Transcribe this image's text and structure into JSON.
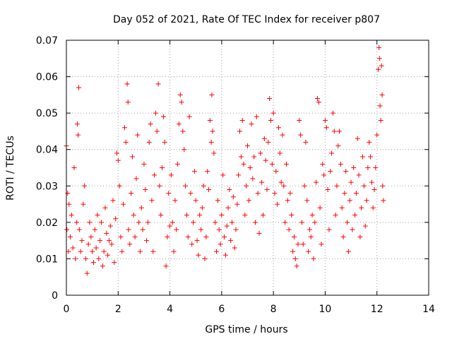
{
  "chart_data": {
    "type": "scatter",
    "title": "Day 052 of 2021, Rate Of TEC Index for receiver p807",
    "xlabel": "GPS time / hours",
    "ylabel": "ROTI / TECUs",
    "xlim": [
      0,
      14
    ],
    "ylim": [
      0,
      0.07
    ],
    "xticks": [
      0,
      2,
      4,
      6,
      8,
      10,
      12,
      14
    ],
    "xtick_labels": [
      "0",
      "2",
      "4",
      "6",
      "8",
      "10",
      "12",
      "14"
    ],
    "yticks": [
      0,
      0.01,
      0.02,
      0.03,
      0.04,
      0.05,
      0.06,
      0.07
    ],
    "ytick_labels": [
      "0",
      "0.01",
      "0.02",
      "0.03",
      "0.04",
      "0.05",
      "0.06",
      "0.07"
    ],
    "grid": true,
    "marker": "+",
    "color": "#ff0000",
    "series": [
      {
        "name": "ROTI",
        "points": [
          [
            0.0,
            0.041
          ],
          [
            0.02,
            0.018
          ],
          [
            0.05,
            0.028
          ],
          [
            0.08,
            0.012
          ],
          [
            0.1,
            0.025
          ],
          [
            0.15,
            0.016
          ],
          [
            0.2,
            0.022
          ],
          [
            0.25,
            0.013
          ],
          [
            0.3,
            0.035
          ],
          [
            0.35,
            0.01
          ],
          [
            0.4,
            0.02
          ],
          [
            0.42,
            0.047
          ],
          [
            0.45,
            0.044
          ],
          [
            0.48,
            0.057
          ],
          [
            0.5,
            0.018
          ],
          [
            0.55,
            0.012
          ],
          [
            0.6,
            0.015
          ],
          [
            0.65,
            0.025
          ],
          [
            0.7,
            0.03
          ],
          [
            0.75,
            0.01
          ],
          [
            0.8,
            0.006
          ],
          [
            0.85,
            0.014
          ],
          [
            0.9,
            0.02
          ],
          [
            0.95,
            0.016
          ],
          [
            1.0,
            0.012
          ],
          [
            1.05,
            0.009
          ],
          [
            1.1,
            0.018
          ],
          [
            1.15,
            0.013
          ],
          [
            1.2,
            0.022
          ],
          [
            1.25,
            0.01
          ],
          [
            1.3,
            0.015
          ],
          [
            1.35,
            0.02
          ],
          [
            1.4,
            0.008
          ],
          [
            1.45,
            0.012
          ],
          [
            1.5,
            0.024
          ],
          [
            1.55,
            0.017
          ],
          [
            1.6,
            0.011
          ],
          [
            1.65,
            0.015
          ],
          [
            1.7,
            0.019
          ],
          [
            1.75,
            0.014
          ],
          [
            1.8,
            0.026
          ],
          [
            1.85,
            0.009
          ],
          [
            1.9,
            0.021
          ],
          [
            1.95,
            0.039
          ],
          [
            2.0,
            0.037
          ],
          [
            2.05,
            0.03
          ],
          [
            2.1,
            0.016
          ],
          [
            2.15,
            0.012
          ],
          [
            2.2,
            0.025
          ],
          [
            2.25,
            0.046
          ],
          [
            2.3,
            0.042
          ],
          [
            2.35,
            0.058
          ],
          [
            2.38,
            0.053
          ],
          [
            2.4,
            0.018
          ],
          [
            2.45,
            0.014
          ],
          [
            2.5,
            0.028
          ],
          [
            2.55,
            0.038
          ],
          [
            2.6,
            0.022
          ],
          [
            2.65,
            0.016
          ],
          [
            2.7,
            0.032
          ],
          [
            2.75,
            0.044
          ],
          [
            2.8,
            0.02
          ],
          [
            2.85,
            0.012
          ],
          [
            2.9,
            0.024
          ],
          [
            2.95,
            0.018
          ],
          [
            3.0,
            0.036
          ],
          [
            3.05,
            0.029
          ],
          [
            3.1,
            0.015
          ],
          [
            3.15,
            0.02
          ],
          [
            3.2,
            0.042
          ],
          [
            3.25,
            0.047
          ],
          [
            3.3,
            0.026
          ],
          [
            3.35,
            0.012
          ],
          [
            3.4,
            0.033
          ],
          [
            3.45,
            0.05
          ],
          [
            3.5,
            0.045
          ],
          [
            3.55,
            0.058
          ],
          [
            3.6,
            0.03
          ],
          [
            3.65,
            0.022
          ],
          [
            3.7,
            0.035
          ],
          [
            3.75,
            0.049
          ],
          [
            3.8,
            0.042
          ],
          [
            3.85,
            0.008
          ],
          [
            3.9,
            0.016
          ],
          [
            3.95,
            0.028
          ],
          [
            4.0,
            0.019
          ],
          [
            4.05,
            0.033
          ],
          [
            4.1,
            0.02
          ],
          [
            4.15,
            0.012
          ],
          [
            4.2,
            0.026
          ],
          [
            4.25,
            0.018
          ],
          [
            4.3,
            0.036
          ],
          [
            4.35,
            0.047
          ],
          [
            4.4,
            0.055
          ],
          [
            4.45,
            0.053
          ],
          [
            4.5,
            0.045
          ],
          [
            4.55,
            0.04
          ],
          [
            4.6,
            0.03
          ],
          [
            4.65,
            0.022
          ],
          [
            4.7,
            0.016
          ],
          [
            4.75,
            0.049
          ],
          [
            4.8,
            0.028
          ],
          [
            4.85,
            0.014
          ],
          [
            4.9,
            0.02
          ],
          [
            4.95,
            0.034
          ],
          [
            5.0,
            0.026
          ],
          [
            5.05,
            0.015
          ],
          [
            5.1,
            0.011
          ],
          [
            5.15,
            0.022
          ],
          [
            5.2,
            0.018
          ],
          [
            5.25,
            0.024
          ],
          [
            5.3,
            0.03
          ],
          [
            5.35,
            0.01
          ],
          [
            5.4,
            0.016
          ],
          [
            5.45,
            0.034
          ],
          [
            5.5,
            0.029
          ],
          [
            5.55,
            0.048
          ],
          [
            5.6,
            0.042
          ],
          [
            5.62,
            0.055
          ],
          [
            5.65,
            0.045
          ],
          [
            5.7,
            0.039
          ],
          [
            5.75,
            0.02
          ],
          [
            5.8,
            0.012
          ],
          [
            5.85,
            0.026
          ],
          [
            5.9,
            0.018
          ],
          [
            5.95,
            0.014
          ],
          [
            6.0,
            0.022
          ],
          [
            6.05,
            0.033
          ],
          [
            6.1,
            0.016
          ],
          [
            6.15,
            0.011
          ],
          [
            6.2,
            0.019
          ],
          [
            6.25,
            0.024
          ],
          [
            6.3,
            0.029
          ],
          [
            6.35,
            0.015
          ],
          [
            6.4,
            0.02
          ],
          [
            6.45,
            0.027
          ],
          [
            6.5,
            0.013
          ],
          [
            6.55,
            0.018
          ],
          [
            6.6,
            0.025
          ],
          [
            6.65,
            0.033
          ],
          [
            6.7,
            0.045
          ],
          [
            6.75,
            0.038
          ],
          [
            6.8,
            0.048
          ],
          [
            6.85,
            0.036
          ],
          [
            6.9,
            0.022
          ],
          [
            6.95,
            0.03
          ],
          [
            7.0,
            0.041
          ],
          [
            7.05,
            0.026
          ],
          [
            7.1,
            0.035
          ],
          [
            7.15,
            0.047
          ],
          [
            7.2,
            0.032
          ],
          [
            7.25,
            0.038
          ],
          [
            7.3,
            0.02
          ],
          [
            7.35,
            0.049
          ],
          [
            7.4,
            0.028
          ],
          [
            7.45,
            0.017
          ],
          [
            7.5,
            0.039
          ],
          [
            7.55,
            0.031
          ],
          [
            7.6,
            0.022
          ],
          [
            7.65,
            0.043
          ],
          [
            7.7,
            0.037
          ],
          [
            7.75,
            0.029
          ],
          [
            7.8,
            0.042
          ],
          [
            7.85,
            0.054
          ],
          [
            7.9,
            0.048
          ],
          [
            7.95,
            0.036
          ],
          [
            8.0,
            0.05
          ],
          [
            8.05,
            0.028
          ],
          [
            8.1,
            0.034
          ],
          [
            8.15,
            0.025
          ],
          [
            8.2,
            0.046
          ],
          [
            8.25,
            0.039
          ],
          [
            8.3,
            0.031
          ],
          [
            8.35,
            0.044
          ],
          [
            8.4,
            0.03
          ],
          [
            8.45,
            0.02
          ],
          [
            8.5,
            0.036
          ],
          [
            8.55,
            0.026
          ],
          [
            8.6,
            0.018
          ],
          [
            8.65,
            0.028
          ],
          [
            8.7,
            0.022
          ],
          [
            8.75,
            0.012
          ],
          [
            8.8,
            0.016
          ],
          [
            8.85,
            0.01
          ],
          [
            8.9,
            0.008
          ],
          [
            8.95,
            0.014
          ],
          [
            9.0,
            0.048
          ],
          [
            9.05,
            0.044
          ],
          [
            9.1,
            0.02
          ],
          [
            9.15,
            0.014
          ],
          [
            9.2,
            0.03
          ],
          [
            9.25,
            0.042
          ],
          [
            9.3,
            0.026
          ],
          [
            9.35,
            0.012
          ],
          [
            9.4,
            0.018
          ],
          [
            9.45,
            0.016
          ],
          [
            9.5,
            0.022
          ],
          [
            9.55,
            0.01
          ],
          [
            9.6,
            0.02
          ],
          [
            9.65,
            0.031
          ],
          [
            9.7,
            0.054
          ],
          [
            9.75,
            0.053
          ],
          [
            9.8,
            0.024
          ],
          [
            9.85,
            0.014
          ],
          [
            9.9,
            0.036
          ],
          [
            9.95,
            0.033
          ],
          [
            10.0,
            0.048
          ],
          [
            10.05,
            0.046
          ],
          [
            10.1,
            0.029
          ],
          [
            10.15,
            0.018
          ],
          [
            10.2,
            0.034
          ],
          [
            10.25,
            0.039
          ],
          [
            10.3,
            0.05
          ],
          [
            10.35,
            0.045
          ],
          [
            10.4,
            0.022
          ],
          [
            10.45,
            0.03
          ],
          [
            10.5,
            0.041
          ],
          [
            10.55,
            0.045
          ],
          [
            10.6,
            0.036
          ],
          [
            10.65,
            0.024
          ],
          [
            10.7,
            0.016
          ],
          [
            10.75,
            0.028
          ],
          [
            10.8,
            0.034
          ],
          [
            10.85,
            0.02
          ],
          [
            10.9,
            0.012
          ],
          [
            10.95,
            0.026
          ],
          [
            11.0,
            0.031
          ],
          [
            11.05,
            0.018
          ],
          [
            11.1,
            0.035
          ],
          [
            11.15,
            0.022
          ],
          [
            11.2,
            0.028
          ],
          [
            11.25,
            0.043
          ],
          [
            11.3,
            0.033
          ],
          [
            11.35,
            0.016
          ],
          [
            11.4,
            0.024
          ],
          [
            11.45,
            0.038
          ],
          [
            11.5,
            0.03
          ],
          [
            11.55,
            0.019
          ],
          [
            11.6,
            0.026
          ],
          [
            11.65,
            0.035
          ],
          [
            11.7,
            0.042
          ],
          [
            11.75,
            0.038
          ],
          [
            11.8,
            0.031
          ],
          [
            11.85,
            0.024
          ],
          [
            11.9,
            0.029
          ],
          [
            11.95,
            0.035
          ],
          [
            12.0,
            0.044
          ],
          [
            12.05,
            0.062
          ],
          [
            12.08,
            0.068
          ],
          [
            12.1,
            0.065
          ],
          [
            12.12,
            0.052
          ],
          [
            12.15,
            0.048
          ],
          [
            12.18,
            0.063
          ],
          [
            12.2,
            0.055
          ],
          [
            12.22,
            0.03
          ],
          [
            12.25,
            0.026
          ]
        ]
      }
    ]
  }
}
